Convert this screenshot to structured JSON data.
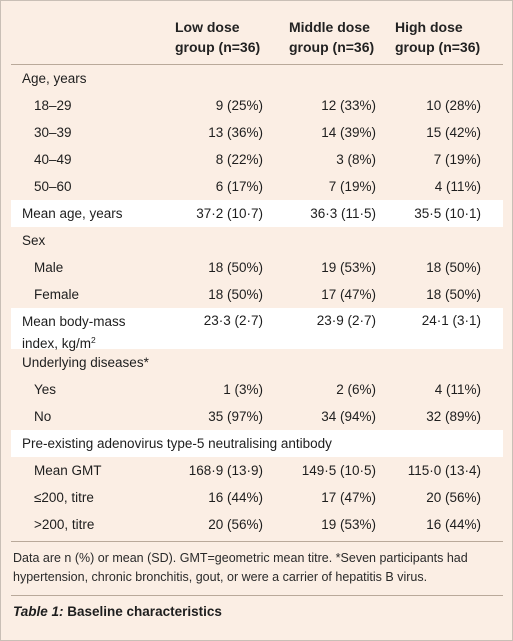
{
  "table": {
    "columns": [
      "Low dose group (n=36)",
      "Middle dose group (n=36)",
      "High dose group (n=36)"
    ],
    "col_heads": {
      "low_line1": "Low dose",
      "low_line2": "group (n=36)",
      "mid_line1": "Middle dose",
      "mid_line2": "group (n=36)",
      "high_line1": "High dose",
      "high_line2": "group (n=36)"
    },
    "rows": [
      {
        "label": "Age, years",
        "values": [
          "",
          "",
          ""
        ]
      },
      {
        "label": "18–29",
        "values": [
          "9 (25%)",
          "12 (33%)",
          "10 (28%)"
        ]
      },
      {
        "label": "30–39",
        "values": [
          "13 (36%)",
          "14 (39%)",
          "15 (42%)"
        ]
      },
      {
        "label": "40–49",
        "values": [
          "8 (22%)",
          "3 (8%)",
          "7 (19%)"
        ]
      },
      {
        "label": "50–60",
        "values": [
          "6 (17%)",
          "7 (19%)",
          "4 (11%)"
        ]
      },
      {
        "label": "Mean age, years",
        "values": [
          "37·2 (10·7)",
          "36·3 (11·5)",
          "35·5 (10·1)"
        ]
      },
      {
        "label": "Sex",
        "values": [
          "",
          "",
          ""
        ]
      },
      {
        "label": "Male",
        "values": [
          "18 (50%)",
          "19 (53%)",
          "18 (50%)"
        ]
      },
      {
        "label": "Female",
        "values": [
          "18 (50%)",
          "17 (47%)",
          "18 (50%)"
        ]
      },
      {
        "label": "Mean body-mass index, kg/m",
        "label_sup": "2",
        "values": [
          "23·3 (2·7)",
          "23·9 (2·7)",
          "24·1 (3·1)"
        ]
      },
      {
        "label": "Underlying diseases*",
        "values": [
          "",
          "",
          ""
        ]
      },
      {
        "label": "Yes",
        "values": [
          "1 (3%)",
          "2 (6%)",
          "4 (11%)"
        ]
      },
      {
        "label": "No",
        "values": [
          "35 (97%)",
          "34 (94%)",
          "32 (89%)"
        ]
      },
      {
        "label": "Pre-existing adenovirus type-5 neutralising antibody",
        "values": [
          "",
          "",
          ""
        ]
      },
      {
        "label": "Mean GMT",
        "values": [
          "168·9 (13·9)",
          "149·5 (10·5)",
          "115·0 (13·4)"
        ]
      },
      {
        "label": "≤200, titre",
        "values": [
          "16 (44%)",
          "17 (47%)",
          "20 (56%)"
        ]
      },
      {
        "label": ">200, titre",
        "values": [
          "20 (56%)",
          "19 (53%)",
          "16 (44%)"
        ]
      }
    ],
    "footnote": "Data are n (%) or mean (SD). GMT=geometric mean titre. *Seven participants had hypertension, chronic bronchitis, gout, or were a carrier of hepatitis B virus.",
    "caption_label": "Table 1:",
    "caption_text": " Baseline characteristics"
  }
}
